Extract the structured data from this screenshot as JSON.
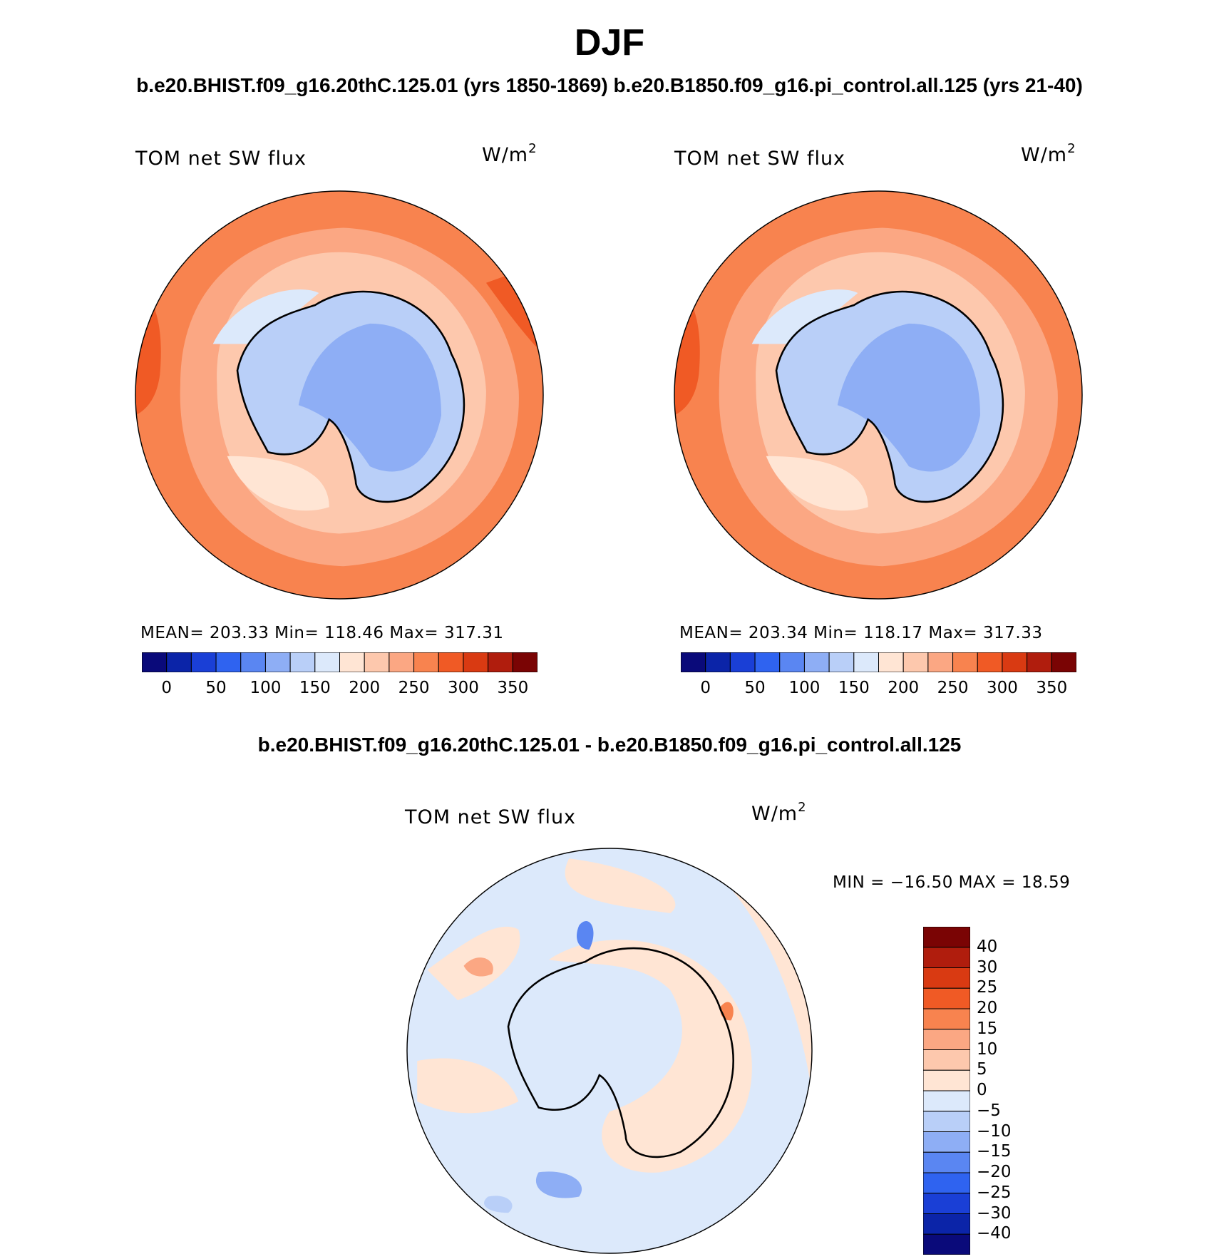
{
  "figure": {
    "title": "DJF",
    "subtitle": "b.e20.BHIST.f09_g16.20thC.125.01 (yrs 1850-1869)  b.e20.B1850.f09_g16.pi_control.all.125 (yrs 21-40)",
    "diff_subtitle": "b.e20.BHIST.f09_g16.20thC.125.01 - b.e20.B1850.f09_g16.pi_control.all.125"
  },
  "panels": [
    {
      "id": "hist",
      "title": "TOM net SW flux",
      "units": "W/m",
      "units_exp": "2",
      "stats_text": "MEAN= 203.33   Min= 118.46   Max= 317.31",
      "mean": 203.33,
      "min": 118.46,
      "max": 317.31
    },
    {
      "id": "pi_control",
      "title": "TOM net SW flux",
      "units": "W/m",
      "units_exp": "2",
      "stats_text": "MEAN= 203.34   Min= 118.17   Max= 317.33",
      "mean": 203.34,
      "min": 118.17,
      "max": 317.33
    },
    {
      "id": "difference",
      "title": "TOM net SW flux",
      "units": "W/m",
      "units_exp": "2",
      "stats_text": "MIN = −16.50 MAX =   18.59",
      "min": -16.5,
      "max": 18.59
    }
  ],
  "colorbar_main": {
    "colors": [
      "#0a0a7a",
      "#0b24a8",
      "#1a3fd6",
      "#2f63f0",
      "#5a86f2",
      "#8eaef5",
      "#b9cff8",
      "#dce9fb",
      "#ffe5d4",
      "#fdc8ad",
      "#fba783",
      "#f8834f",
      "#f05a25",
      "#d93a12",
      "#b01d0d",
      "#7a0404"
    ],
    "tick_labels": [
      "0",
      "50",
      "100",
      "150",
      "200",
      "250",
      "300",
      "350"
    ]
  },
  "colorbar_diff": {
    "colors": [
      "#0a0a7a",
      "#0b24a8",
      "#1a3fd6",
      "#2f63f0",
      "#5a86f2",
      "#8eaef5",
      "#b9cff8",
      "#dce9fb",
      "#ffe5d4",
      "#fdc8ad",
      "#fba783",
      "#f8834f",
      "#f05a25",
      "#d93a12",
      "#b01d0d",
      "#7a0404"
    ],
    "tick_labels": [
      "40",
      "30",
      "25",
      "20",
      "15",
      "10",
      "5",
      "0",
      "−5",
      "−10",
      "−15",
      "−20",
      "−25",
      "−30",
      "−40"
    ]
  },
  "chart_data": {
    "type": "heatmap",
    "projection": "south polar stereographic",
    "variable": "TOM net SW flux",
    "season": "DJF",
    "units": "W/m2",
    "main_contour_levels": [
      0,
      25,
      50,
      75,
      100,
      125,
      150,
      175,
      200,
      225,
      250,
      275,
      300,
      325,
      350
    ],
    "diff_contour_levels": [
      -40,
      -30,
      -25,
      -20,
      -15,
      -10,
      -5,
      0,
      5,
      10,
      15,
      20,
      25,
      30,
      40
    ]
  }
}
